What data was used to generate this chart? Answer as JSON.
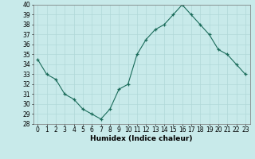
{
  "x": [
    0,
    1,
    2,
    3,
    4,
    5,
    6,
    7,
    8,
    9,
    10,
    11,
    12,
    13,
    14,
    15,
    16,
    17,
    18,
    19,
    20,
    21,
    22,
    23
  ],
  "y": [
    34.5,
    33.0,
    32.5,
    31.0,
    30.5,
    29.5,
    29.0,
    28.5,
    29.5,
    31.5,
    32.0,
    35.0,
    36.5,
    37.5,
    38.0,
    39.0,
    40.0,
    39.0,
    38.0,
    37.0,
    35.5,
    35.0,
    34.0,
    33.0
  ],
  "xlabel": "Humidex (Indice chaleur)",
  "ylim": [
    28,
    40
  ],
  "yticks": [
    28,
    29,
    30,
    31,
    32,
    33,
    34,
    35,
    36,
    37,
    38,
    39,
    40
  ],
  "xticks": [
    0,
    1,
    2,
    3,
    4,
    5,
    6,
    7,
    8,
    9,
    10,
    11,
    12,
    13,
    14,
    15,
    16,
    17,
    18,
    19,
    20,
    21,
    22,
    23
  ],
  "line_color": "#1a6b5a",
  "marker": "+",
  "bg_color": "#c8eaea",
  "grid_color": "#b0d8d8",
  "tick_fontsize": 5.5,
  "xlabel_fontsize": 6.5
}
